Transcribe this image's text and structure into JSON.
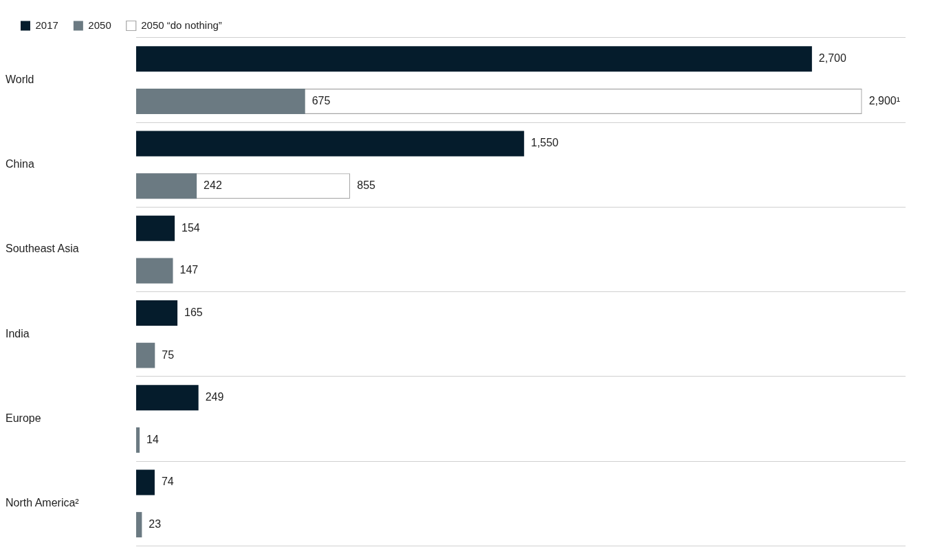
{
  "chart_data": {
    "type": "bar",
    "orientation": "horizontal",
    "categories": [
      "World",
      "China",
      "Southeast Asia",
      "India",
      "Europe",
      "North America²"
    ],
    "series": [
      {
        "name": "2017",
        "color": "#051c2c",
        "values": [
          2700,
          1550,
          154,
          165,
          249,
          74
        ],
        "value_labels": [
          "2,700",
          "1,550",
          "154",
          "165",
          "249",
          "74"
        ]
      },
      {
        "name": "2050",
        "color": "#6b7a82",
        "values": [
          675,
          242,
          147,
          75,
          14,
          23
        ],
        "value_labels": [
          "675",
          "242",
          "147",
          "75",
          "14",
          "23"
        ]
      },
      {
        "name": "2050 “do nothing”",
        "color": "#a6a6a6",
        "line_style": "dashed",
        "values": [
          2900,
          855,
          null,
          null,
          null,
          null
        ],
        "value_labels": [
          "2,900¹",
          "855",
          null,
          null,
          null,
          null
        ]
      }
    ],
    "legend": "top left",
    "grid": "y",
    "tick_labels": "y"
  }
}
